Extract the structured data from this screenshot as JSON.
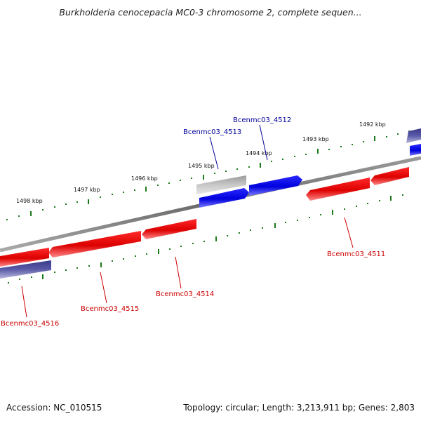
{
  "title": "Burkholderia cenocepacia MC0-3 chromosome 2, complete sequen...",
  "accession_text": "Accession: NC_010515",
  "summary_text": "Topology: circular; Length: 3,213,911 bp; Genes: 2,803",
  "tick_labels": [
    "1498 kbp",
    "1497 kbp",
    "1496 kbp",
    "1495 kbp",
    "1494 kbp",
    "1493 kbp",
    "1492 kbp"
  ],
  "gene_labels": [
    {
      "text": "Bcenmc03_4512",
      "strand": "forward",
      "color": "#000099"
    },
    {
      "text": "Bcenmc03_4513",
      "strand": "forward",
      "color": "#000099"
    },
    {
      "text": "Bcenmc03_4511",
      "strand": "reverse",
      "color": "#cc0000"
    },
    {
      "text": "Bcenmc03_4514",
      "strand": "reverse",
      "color": "#cc0000"
    },
    {
      "text": "Bcenmc03_4515",
      "strand": "reverse",
      "color": "#cc0000"
    },
    {
      "text": "Bcenmc03_4516",
      "strand": "reverse",
      "color": "#cc0000"
    }
  ],
  "colors": {
    "forward_gene": "#1a1aee",
    "reverse_gene": "#ee1a1a",
    "other_feature": "#b4b4b4",
    "backbone": "#808080",
    "tick": "#1a7a1a"
  }
}
